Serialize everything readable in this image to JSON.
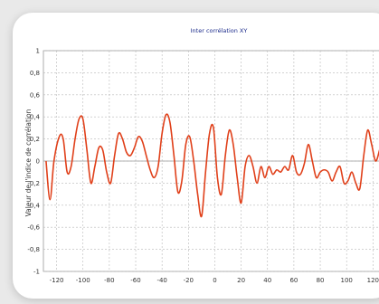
{
  "chart_data": {
    "type": "line",
    "title": "Inter corrélation XY",
    "xlabel": "",
    "ylabel": "Valeur de l'indice de corrélation",
    "xlim": [
      -130,
      128
    ],
    "ylim": [
      -1,
      1
    ],
    "xticks": [
      -120,
      -100,
      -80,
      -60,
      -40,
      -20,
      0,
      20,
      40,
      60,
      80,
      100,
      120
    ],
    "yticks": [
      1,
      0.8,
      0.6,
      0.4,
      0.2,
      0,
      -0.2,
      -0.4,
      -0.6,
      -0.8,
      -1
    ],
    "xtick_labels": [
      "-120",
      "-100",
      "-80",
      "-60",
      "-40",
      "-20",
      "0",
      "20",
      "40",
      "60",
      "80",
      "100",
      "120"
    ],
    "ytick_labels": [
      "1",
      "0,8",
      "0,6",
      "0,4",
      "0,2",
      "0",
      "-0,2",
      "-0,4",
      "-0,6",
      "-0,8",
      "-1"
    ],
    "grid": true,
    "series": [
      {
        "color": "#e0401a",
        "x": [
          -128,
          -125,
          -122,
          -118,
          -115,
          -112,
          -109,
          -106,
          -103,
          -100,
          -97,
          -94,
          -91,
          -88,
          -85,
          -82,
          -79,
          -76,
          -73,
          -70,
          -67,
          -64,
          -61,
          -58,
          -55,
          -52,
          -49,
          -46,
          -43,
          -40,
          -37,
          -34,
          -31,
          -28,
          -25,
          -22,
          -19,
          -16,
          -13,
          -10,
          -7,
          -4,
          -1,
          2,
          5,
          8,
          11,
          14,
          17,
          20,
          23,
          26,
          29,
          32,
          35,
          38,
          41,
          44,
          47,
          50,
          53,
          56,
          59,
          62,
          65,
          68,
          71,
          74,
          77,
          80,
          83,
          86,
          89,
          92,
          95,
          98,
          101,
          104,
          107,
          110,
          113,
          116,
          119,
          122,
          125
        ],
        "y": [
          0.0,
          -0.35,
          0.0,
          0.22,
          0.2,
          -0.1,
          -0.05,
          0.2,
          0.38,
          0.38,
          0.1,
          -0.2,
          -0.05,
          0.12,
          0.1,
          -0.1,
          -0.2,
          0.05,
          0.25,
          0.2,
          0.08,
          0.05,
          0.12,
          0.22,
          0.18,
          0.05,
          -0.08,
          -0.15,
          -0.05,
          0.25,
          0.42,
          0.35,
          0.05,
          -0.28,
          -0.18,
          0.15,
          0.22,
          0.0,
          -0.3,
          -0.5,
          -0.1,
          0.25,
          0.3,
          -0.15,
          -0.3,
          0.05,
          0.28,
          0.15,
          -0.15,
          -0.38,
          -0.05,
          0.05,
          -0.05,
          -0.2,
          -0.05,
          -0.15,
          -0.05,
          -0.12,
          -0.08,
          -0.1,
          -0.05,
          -0.08,
          0.05,
          -0.1,
          -0.12,
          -0.02,
          0.15,
          0.0,
          -0.15,
          -0.1,
          -0.08,
          -0.1,
          -0.18,
          -0.1,
          -0.05,
          -0.2,
          -0.18,
          -0.1,
          -0.2,
          -0.25,
          0.05,
          0.28,
          0.15,
          0.0,
          0.1
        ]
      }
    ]
  }
}
